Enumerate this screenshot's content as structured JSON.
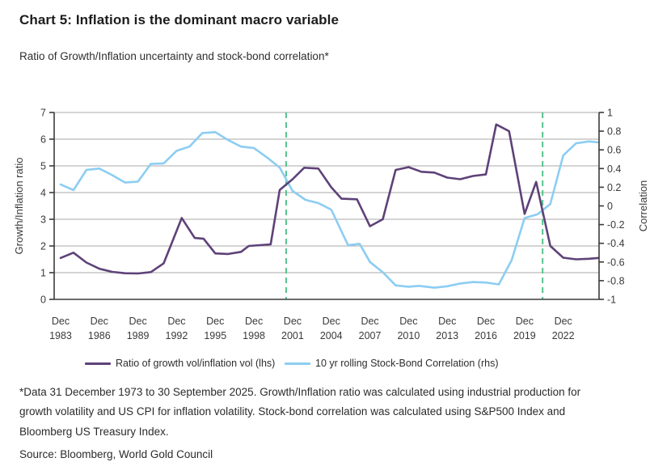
{
  "page": {
    "title": "Chart 5: Inflation is the dominant macro variable",
    "subtitle": "Ratio of Growth/Inflation uncertainty and stock-bond correlation*",
    "footnote": "*Data 31 December 1973 to 30 September 2025. Growth/Inflation ratio was calculated using industrial production for growth volatility and US CPI for inflation volatility. Stock-bond correlation was calculated using S&P500 Index and Bloomberg US Treasury Index.",
    "source": "Source: Bloomberg, World Gold Council"
  },
  "colors": {
    "ratio_line": "#5e4278",
    "correlation_line": "#8ccdf2",
    "event_line": "#55c38c",
    "gridline": "#a8a8a8",
    "axis": "#3b3b3b",
    "text": "#2e2e2e"
  },
  "chart_data": {
    "type": "line",
    "title": "Ratio of Growth/Inflation uncertainty and stock-bond correlation",
    "grid": true,
    "legend_position": "bottom",
    "x_axis": {
      "tick_prefix": "Dec",
      "ticks": [
        1983,
        1986,
        1989,
        1992,
        1995,
        1998,
        2001,
        2004,
        2007,
        2010,
        2013,
        2016,
        2019,
        2022
      ],
      "range": [
        1982.5,
        2024.78
      ],
      "x_note": "x units are December year-end observations; 2024.75 = 30 September 2025"
    },
    "y_axis_left": {
      "label": "Growth/Inflation ratio",
      "ticks": [
        0,
        1,
        2,
        3,
        4,
        5,
        6,
        7
      ],
      "range": [
        0,
        7
      ]
    },
    "y_axis_right": {
      "label": "Correlation",
      "ticks": [
        1,
        0.8,
        0.6,
        0.4,
        0.2,
        0,
        -0.2,
        -0.4,
        -0.6,
        -0.8,
        -1
      ],
      "range": [
        -1,
        1
      ]
    },
    "event_vlines_x": [
      2000.5,
      2020.4
    ],
    "series": [
      {
        "name": "Ratio of growth vol/inflation vol (lhs)",
        "axis": "left",
        "color_key": "ratio_line",
        "points": [
          [
            1983,
            1.55
          ],
          [
            1984,
            1.75
          ],
          [
            1985,
            1.38
          ],
          [
            1986,
            1.15
          ],
          [
            1987,
            1.03
          ],
          [
            1988,
            0.98
          ],
          [
            1989,
            0.97
          ],
          [
            1990,
            1.02
          ],
          [
            1991,
            1.35
          ],
          [
            1992.4,
            3.05
          ],
          [
            1993.4,
            2.3
          ],
          [
            1994.1,
            2.27
          ],
          [
            1995,
            1.72
          ],
          [
            1996,
            1.7
          ],
          [
            1997,
            1.78
          ],
          [
            1997.6,
            2.0
          ],
          [
            1999.3,
            2.06
          ],
          [
            2000,
            4.1
          ],
          [
            2001,
            4.5
          ],
          [
            2001.9,
            4.93
          ],
          [
            2003,
            4.9
          ],
          [
            2004,
            4.2
          ],
          [
            2004.8,
            3.77
          ],
          [
            2006,
            3.75
          ],
          [
            2007,
            2.74
          ],
          [
            2008,
            3.0
          ],
          [
            2009,
            4.85
          ],
          [
            2010,
            4.95
          ],
          [
            2011,
            4.78
          ],
          [
            2012,
            4.75
          ],
          [
            2013,
            4.56
          ],
          [
            2014,
            4.5
          ],
          [
            2015,
            4.62
          ],
          [
            2016,
            4.68
          ],
          [
            2016.8,
            6.55
          ],
          [
            2017.8,
            6.3
          ],
          [
            2019,
            3.2
          ],
          [
            2019.9,
            4.4
          ],
          [
            2021,
            2.0
          ],
          [
            2022,
            1.56
          ],
          [
            2023,
            1.5
          ],
          [
            2024,
            1.52
          ],
          [
            2024.75,
            1.55
          ]
        ]
      },
      {
        "name": "10 yr rolling Stock-Bond Correlation (rhs)",
        "axis": "right",
        "color_key": "correlation_line",
        "points": [
          [
            1983,
            0.23
          ],
          [
            1984,
            0.17
          ],
          [
            1985,
            0.385
          ],
          [
            1986,
            0.4
          ],
          [
            1987,
            0.33
          ],
          [
            1988,
            0.25
          ],
          [
            1989,
            0.26
          ],
          [
            1990,
            0.45
          ],
          [
            1991,
            0.455
          ],
          [
            1992,
            0.59
          ],
          [
            1993,
            0.635
          ],
          [
            1994,
            0.78
          ],
          [
            1995,
            0.79
          ],
          [
            1996,
            0.705
          ],
          [
            1997,
            0.635
          ],
          [
            1998,
            0.62
          ],
          [
            1999,
            0.52
          ],
          [
            2000,
            0.41
          ],
          [
            2001,
            0.16
          ],
          [
            2002,
            0.065
          ],
          [
            2003,
            0.03
          ],
          [
            2004,
            -0.04
          ],
          [
            2005.3,
            -0.42
          ],
          [
            2006.2,
            -0.405
          ],
          [
            2007,
            -0.6
          ],
          [
            2008,
            -0.71
          ],
          [
            2009,
            -0.85
          ],
          [
            2010,
            -0.865
          ],
          [
            2010.8,
            -0.855
          ],
          [
            2012,
            -0.875
          ],
          [
            2013,
            -0.86
          ],
          [
            2014,
            -0.83
          ],
          [
            2015,
            -0.815
          ],
          [
            2016,
            -0.82
          ],
          [
            2017,
            -0.84
          ],
          [
            2018,
            -0.58
          ],
          [
            2019,
            -0.13
          ],
          [
            2020,
            -0.09
          ],
          [
            2021,
            0.02
          ],
          [
            2022,
            0.54
          ],
          [
            2023,
            0.67
          ],
          [
            2024,
            0.69
          ],
          [
            2024.75,
            0.68
          ]
        ]
      }
    ]
  }
}
